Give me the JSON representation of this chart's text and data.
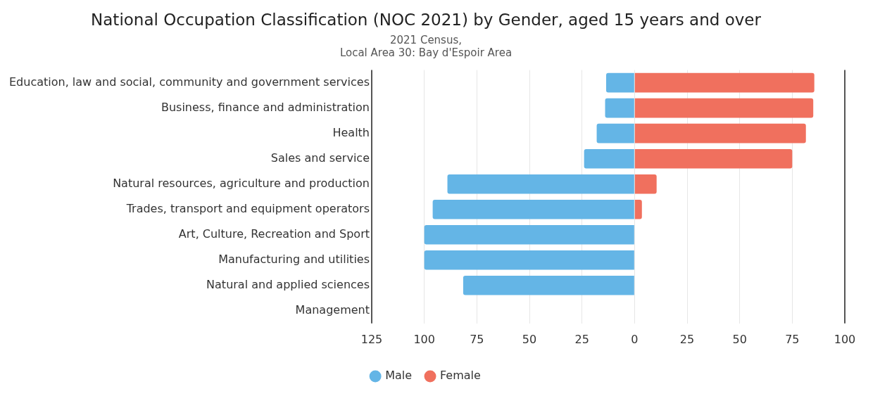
{
  "chart_data": {
    "type": "bar",
    "orientation": "horizontal",
    "stacked": true,
    "title": "National Occupation Classification (NOC 2021) by Gender, aged 15 years and over",
    "subtitle": "2021 Census,\nLocal Area 30: Bay d'Espoir Area",
    "categories": [
      "Education, law and social, community and government services",
      "Business, finance and administration",
      "Health",
      "Sales and service",
      "Natural resources, agriculture and production",
      "Trades, transport and equipment operators",
      "Art, Culture, Recreation and Sport",
      "Manufacturing and utilities",
      "Natural and applied sciences",
      "Management"
    ],
    "series": [
      {
        "name": "Male",
        "color": "#64b5e6",
        "values": [
          -13.5,
          -14,
          -18,
          -24,
          -89,
          -96,
          -100,
          -100,
          -81.5,
          null
        ]
      },
      {
        "name": "Female",
        "color": "#f0705e",
        "values": [
          85.5,
          85,
          81.5,
          75,
          10.5,
          3.5,
          null,
          null,
          null,
          null
        ]
      }
    ],
    "xlim": [
      -125,
      100
    ],
    "xticks": [
      {
        "value": -125,
        "label": "125"
      },
      {
        "value": -100,
        "label": "100"
      },
      {
        "value": -75,
        "label": "75"
      },
      {
        "value": -50,
        "label": "50"
      },
      {
        "value": -25,
        "label": "25"
      },
      0,
      25,
      50,
      75,
      100
    ],
    "grid": "x",
    "legend": "bottom"
  }
}
